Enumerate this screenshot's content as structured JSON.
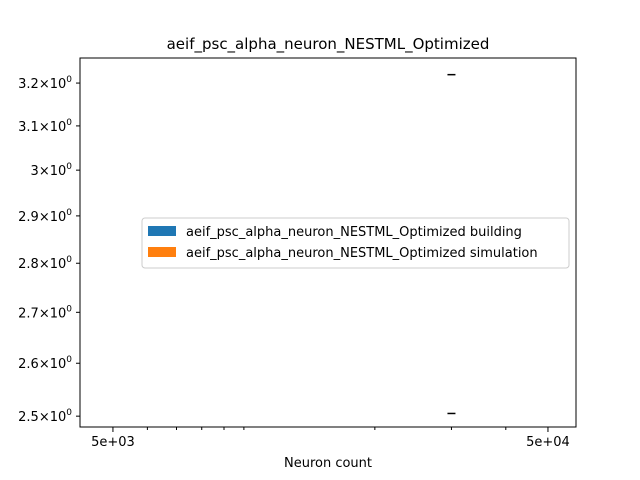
{
  "chart_data": {
    "type": "bar",
    "title": "aeif_psc_alpha_neuron_NESTML_Optimized",
    "xlabel": "Neuron count",
    "ylabel": "",
    "xscale": "log",
    "yscale": "log",
    "xlim": [
      4200,
      58000
    ],
    "ylim": [
      2.48,
      3.26
    ],
    "x_ticks": [
      {
        "value": 5000,
        "label": "5e+03"
      },
      {
        "value": 50000,
        "label": "5e+04"
      }
    ],
    "x_minor_ticks": [
      6000,
      7000,
      8000,
      9000,
      10000,
      20000,
      30000,
      40000
    ],
    "y_ticks": [
      {
        "value": 2.5,
        "mantissa": "2.5"
      },
      {
        "value": 2.6,
        "mantissa": "2.6"
      },
      {
        "value": 2.7,
        "mantissa": "2.7"
      },
      {
        "value": 2.8,
        "mantissa": "2.8"
      },
      {
        "value": 2.9,
        "mantissa": "2.9"
      },
      {
        "value": 3.0,
        "mantissa": "3"
      },
      {
        "value": 3.1,
        "mantissa": "3.1"
      },
      {
        "value": 3.2,
        "mantissa": "3.2"
      }
    ],
    "y_tick_base": "10",
    "y_tick_exponent": "0",
    "y_tick_times": "×",
    "series": [
      {
        "name": "aeif_psc_alpha_neuron_NESTML_Optimized building",
        "color": "#1f77b4"
      },
      {
        "name": "aeif_psc_alpha_neuron_NESTML_Optimized simulation",
        "color": "#ff7f0e"
      }
    ],
    "error_marks": [
      {
        "x": 30000,
        "y": 3.22
      },
      {
        "x": 30000,
        "y": 2.505
      }
    ],
    "legend_position": "center-right",
    "grid": false
  }
}
